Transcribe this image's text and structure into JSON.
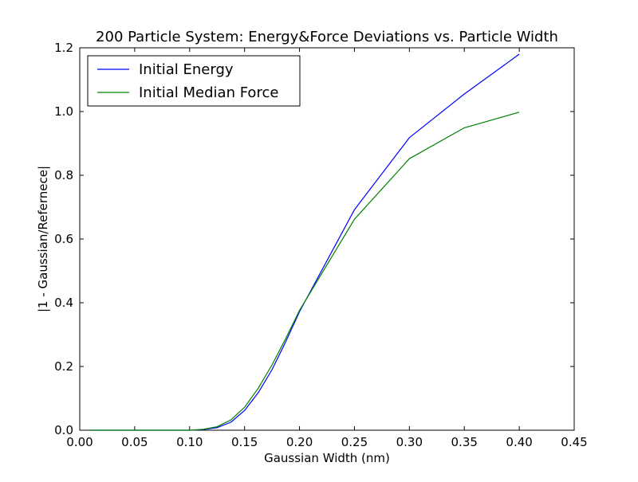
{
  "chart_data": {
    "type": "line",
    "title": "200 Particle System: Energy&Force Deviations vs. Particle Width",
    "xlabel": "Gaussian Width (nm)",
    "ylabel": "|1 - Gaussian/Refernece|",
    "xlim": [
      0.0,
      0.45
    ],
    "ylim": [
      0.0,
      1.2
    ],
    "xticks": [
      0.0,
      0.05,
      0.1,
      0.15,
      0.2,
      0.25,
      0.3,
      0.35,
      0.4,
      0.45
    ],
    "xtick_labels": [
      "0.00",
      "0.05",
      "0.10",
      "0.15",
      "0.20",
      "0.25",
      "0.30",
      "0.35",
      "0.40",
      "0.45"
    ],
    "yticks": [
      0.0,
      0.2,
      0.4,
      0.6,
      0.8,
      1.0,
      1.2
    ],
    "ytick_labels": [
      "0.0",
      "0.2",
      "0.4",
      "0.6",
      "0.8",
      "1.0",
      "1.2"
    ],
    "grid": false,
    "legend_position": "top-left",
    "x": [
      0.01,
      0.05,
      0.1,
      0.1125,
      0.125,
      0.1375,
      0.15,
      0.1625,
      0.175,
      0.1875,
      0.2,
      0.25,
      0.3,
      0.35,
      0.4
    ],
    "series": [
      {
        "name": "Initial Energy",
        "color": "#0000ff",
        "values": [
          0.0,
          0.0,
          0.0,
          0.002,
          0.008,
          0.025,
          0.062,
          0.118,
          0.19,
          0.278,
          0.372,
          0.692,
          0.918,
          1.055,
          1.18
        ]
      },
      {
        "name": "Initial Median Force",
        "color": "#008000",
        "values": [
          0.0,
          0.0,
          0.0,
          0.003,
          0.011,
          0.032,
          0.072,
          0.132,
          0.205,
          0.288,
          0.376,
          0.662,
          0.852,
          0.949,
          0.998
        ]
      }
    ]
  }
}
